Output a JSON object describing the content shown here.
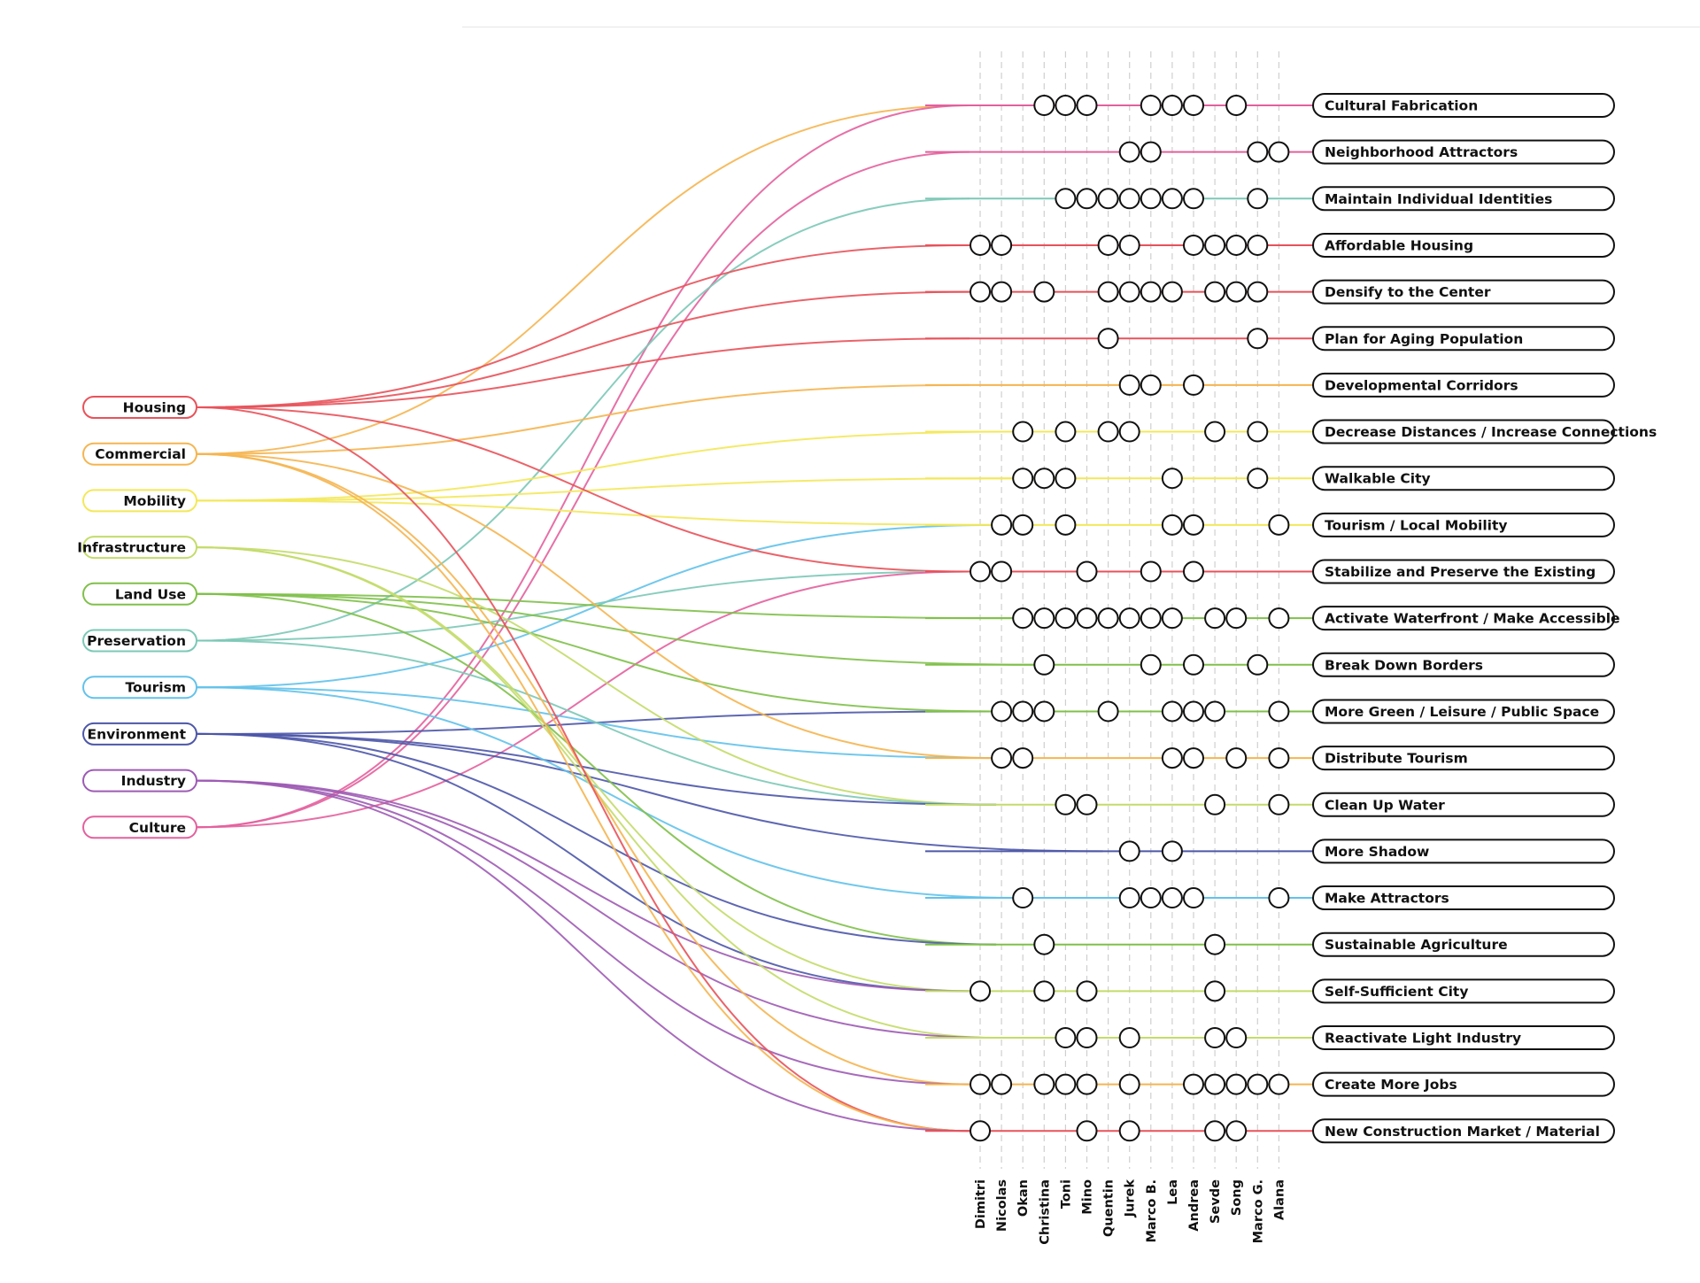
{
  "categories": [
    {
      "label": "Housing",
      "color": "#e8525a"
    },
    {
      "label": "Commercial",
      "color": "#f5b550"
    },
    {
      "label": "Mobility",
      "color": "#f3e85a"
    },
    {
      "label": "Infrastructure",
      "color": "#c3dc6a"
    },
    {
      "label": "Land Use",
      "color": "#80c04a"
    },
    {
      "label": "Preservation",
      "color": "#7cc8b6"
    },
    {
      "label": "Tourism",
      "color": "#62c2ea"
    },
    {
      "label": "Environment",
      "color": "#4d57a8"
    },
    {
      "label": "Industry",
      "color": "#9d5bb4"
    },
    {
      "label": "Culture",
      "color": "#e3609d"
    }
  ],
  "goals": [
    {
      "label": "Cultural Fabrication",
      "color": "#e3609d",
      "links": [
        {
          "cat": 1,
          "enter": 0
        },
        {
          "cat": 9,
          "enter": 0
        }
      ],
      "votes": [
        3,
        4,
        5,
        8,
        9,
        10,
        12
      ]
    },
    {
      "label": "Neighborhood Attractors",
      "color": "#e3609d",
      "links": [
        {
          "cat": 9,
          "enter": 0
        }
      ],
      "votes": [
        7,
        8,
        13,
        14
      ]
    },
    {
      "label": "Maintain Individual Identities",
      "color": "#7cc8b6",
      "links": [
        {
          "cat": 5,
          "enter": 0
        }
      ],
      "votes": [
        4,
        5,
        6,
        7,
        8,
        9,
        10,
        13
      ]
    },
    {
      "label": "Affordable Housing",
      "color": "#e8525a",
      "links": [
        {
          "cat": 0,
          "enter": 0
        }
      ],
      "votes": [
        0,
        1,
        6,
        7,
        10,
        11,
        12,
        13
      ]
    },
    {
      "label": "Densify to the Center",
      "color": "#e8525a",
      "links": [
        {
          "cat": 0,
          "enter": 0
        }
      ],
      "votes": [
        0,
        1,
        3,
        6,
        7,
        8,
        9,
        11,
        12,
        13
      ]
    },
    {
      "label": "Plan for Aging Population",
      "color": "#e8525a",
      "links": [
        {
          "cat": 0,
          "enter": 0
        }
      ],
      "votes": [
        6,
        13
      ]
    },
    {
      "label": "Developmental Corridors",
      "color": "#f5b550",
      "links": [
        {
          "cat": 1,
          "enter": 0
        }
      ],
      "votes": [
        7,
        8,
        10
      ]
    },
    {
      "label": "Decrease Distances / Increase Connections",
      "color": "#f3e85a",
      "links": [
        {
          "cat": 2,
          "enter": 2
        }
      ],
      "votes": [
        2,
        4,
        6,
        7,
        11,
        13
      ]
    },
    {
      "label": "Walkable City",
      "color": "#f3e85a",
      "links": [
        {
          "cat": 2,
          "enter": 2
        }
      ],
      "votes": [
        2,
        3,
        4,
        9,
        13
      ]
    },
    {
      "label": "Tourism / Local Mobility",
      "color": "#f3e85a",
      "links": [
        {
          "cat": 2,
          "enter": 1
        },
        {
          "cat": 6,
          "enter": 1
        }
      ],
      "votes": [
        1,
        2,
        4,
        9,
        10,
        14
      ]
    },
    {
      "label": "Stabilize and Preserve the Existing",
      "color": "#e8525a",
      "links": [
        {
          "cat": 0,
          "enter": 0
        },
        {
          "cat": 5,
          "enter": 0
        },
        {
          "cat": 9,
          "enter": 0
        }
      ],
      "votes": [
        0,
        1,
        5,
        8,
        10
      ]
    },
    {
      "label": "Activate Waterfront / Make Accessible",
      "color": "#80c04a",
      "links": [
        {
          "cat": 4,
          "enter": 2
        }
      ],
      "votes": [
        2,
        3,
        4,
        5,
        6,
        7,
        8,
        9,
        11,
        12,
        14
      ]
    },
    {
      "label": "Break Down Borders",
      "color": "#80c04a",
      "links": [
        {
          "cat": 4,
          "enter": 3
        }
      ],
      "votes": [
        3,
        8,
        10,
        13
      ]
    },
    {
      "label": "More Green / Leisure / Public Space",
      "color": "#80c04a",
      "links": [
        {
          "cat": 4,
          "enter": 1
        },
        {
          "cat": 7,
          "enter": 1
        }
      ],
      "votes": [
        1,
        2,
        3,
        6,
        9,
        10,
        11,
        14
      ]
    },
    {
      "label": "Distribute Tourism",
      "color": "#f5b550",
      "links": [
        {
          "cat": 1,
          "enter": 1
        },
        {
          "cat": 6,
          "enter": 1
        }
      ],
      "votes": [
        1,
        2,
        9,
        10,
        12,
        14
      ]
    },
    {
      "label": "Clean Up Water",
      "color": "#c3dc6a",
      "links": [
        {
          "cat": 3,
          "enter": 1
        },
        {
          "cat": 5,
          "enter": 1
        },
        {
          "cat": 7,
          "enter": 1
        }
      ],
      "votes": [
        4,
        5,
        11,
        14
      ]
    },
    {
      "label": "More Shadow",
      "color": "#4d57a8",
      "links": [
        {
          "cat": 7,
          "enter": 6
        }
      ],
      "votes": [
        7,
        9
      ]
    },
    {
      "label": "Make Attractors",
      "color": "#62c2ea",
      "links": [
        {
          "cat": 6,
          "enter": 2
        }
      ],
      "votes": [
        2,
        7,
        8,
        9,
        10,
        14
      ]
    },
    {
      "label": "Sustainable Agriculture",
      "color": "#80c04a",
      "links": [
        {
          "cat": 4,
          "enter": 1
        },
        {
          "cat": 7,
          "enter": 1
        }
      ],
      "votes": [
        3,
        11
      ]
    },
    {
      "label": "Self-Sufficient City",
      "color": "#c3dc6a",
      "links": [
        {
          "cat": 3,
          "enter": 0
        },
        {
          "cat": 7,
          "enter": 0
        },
        {
          "cat": 8,
          "enter": 0
        }
      ],
      "votes": [
        0,
        3,
        5,
        11
      ]
    },
    {
      "label": "Reactivate Light Industry",
      "color": "#c3dc6a",
      "links": [
        {
          "cat": 3,
          "enter": 1
        },
        {
          "cat": 8,
          "enter": 1
        }
      ],
      "votes": [
        4,
        5,
        7,
        11,
        12
      ]
    },
    {
      "label": "Create More Jobs",
      "color": "#f5b550",
      "links": [
        {
          "cat": 1,
          "enter": 0
        },
        {
          "cat": 8,
          "enter": 0
        }
      ],
      "votes": [
        0,
        1,
        3,
        4,
        5,
        7,
        10,
        11,
        12,
        13,
        14
      ]
    },
    {
      "label": "New Construction Market / Material",
      "color": "#e8525a",
      "links": [
        {
          "cat": 0,
          "enter": 0
        },
        {
          "cat": 1,
          "enter": 0
        },
        {
          "cat": 8,
          "enter": 0
        }
      ],
      "votes": [
        0,
        5,
        7,
        11,
        12
      ]
    }
  ],
  "participants": [
    "Dimitri",
    "Nicolas",
    "Okan",
    "Christina",
    "Toni",
    "Mino",
    "Quentin",
    "Jurek",
    "Marco B.",
    "Lea",
    "Andrea",
    "Sevde",
    "Song",
    "Marco G.",
    "Alana"
  ]
}
